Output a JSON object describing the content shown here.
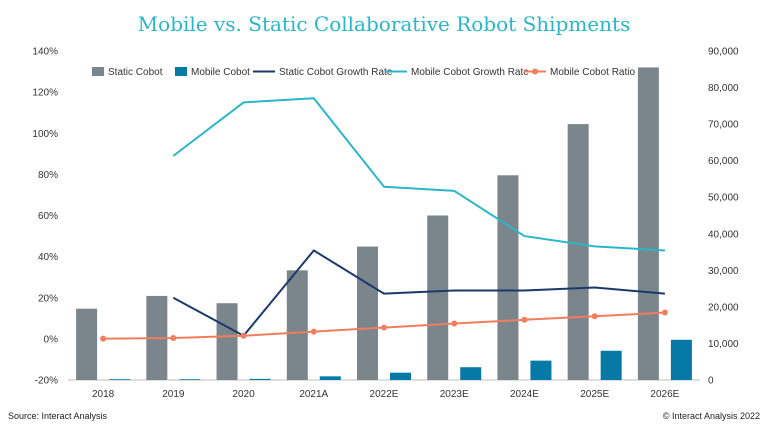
{
  "chart_data": {
    "type": "bar",
    "title": "Mobile vs. Static Collaborative Robot Shipments",
    "categories": [
      "2018",
      "2019",
      "2020",
      "2021A",
      "2022E",
      "2023E",
      "2024E",
      "2025E",
      "2026E"
    ],
    "y_left": {
      "min": -20,
      "max": 140,
      "step": 20,
      "unit": "%",
      "ticks": [
        "-20%",
        "0%",
        "20%",
        "40%",
        "60%",
        "80%",
        "100%",
        "120%",
        "140%"
      ]
    },
    "y_right": {
      "min": 0,
      "max": 90000,
      "step": 10000,
      "ticks": [
        "0",
        "10,000",
        "20,000",
        "30,000",
        "40,000",
        "50,000",
        "60,000",
        "70,000",
        "80,000",
        "90,000"
      ]
    },
    "series": [
      {
        "name": "Static Cobot",
        "kind": "bar",
        "axis": "right",
        "color": "#7a868c",
        "values": [
          19500,
          23000,
          21000,
          30000,
          36500,
          45000,
          56000,
          70000,
          85500
        ]
      },
      {
        "name": "Mobile Cobot",
        "kind": "bar",
        "axis": "right",
        "color": "#0779a7",
        "values": [
          20,
          100,
          300,
          1000,
          2000,
          3500,
          5300,
          8000,
          11000
        ]
      },
      {
        "name": "Static Cobot Growth Rate",
        "kind": "line",
        "axis": "left",
        "color": "#1b3a6b",
        "marker": false,
        "values": [
          null,
          20,
          1.5,
          43,
          22,
          23.5,
          23.5,
          25,
          22
        ]
      },
      {
        "name": "Mobile Cobot Growth Rate",
        "kind": "line",
        "axis": "left",
        "color": "#29b7c7",
        "marker": false,
        "values": [
          null,
          89,
          115,
          117,
          74,
          72,
          50,
          45,
          43
        ]
      },
      {
        "name": "Mobile Cobot Ratio",
        "kind": "line",
        "axis": "left",
        "color": "#f07e5e",
        "marker": true,
        "values": [
          0.1,
          0.4,
          1.5,
          3.5,
          5.5,
          7.5,
          9.3,
          11,
          12.8
        ]
      }
    ],
    "legend_position": "top",
    "grid": false
  },
  "footer": {
    "source": "Source: Interact Analysis",
    "copyright": "© Interact Analysis 2022"
  }
}
